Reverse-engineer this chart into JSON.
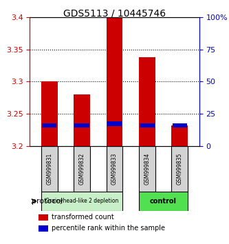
{
  "title": "GDS5113 / 10445746",
  "samples": [
    "GSM999831",
    "GSM999832",
    "GSM999833",
    "GSM999834",
    "GSM999835"
  ],
  "red_values": [
    3.3,
    3.28,
    3.4,
    3.338,
    3.232
  ],
  "blue_values": [
    3.232,
    3.232,
    3.235,
    3.232,
    3.232
  ],
  "ylim": [
    3.2,
    3.4
  ],
  "yticks": [
    3.2,
    3.25,
    3.3,
    3.35,
    3.4
  ],
  "y2lim": [
    0,
    100
  ],
  "y2ticks": [
    0,
    25,
    50,
    75,
    100
  ],
  "bar_width": 0.5,
  "red_color": "#cc0000",
  "blue_color": "#0000cc",
  "grid_color": "#000000",
  "group1_color": "#c8f0c8",
  "group2_color": "#50e050",
  "group1_label": "Grainyhead-like 2 depletion",
  "group2_label": "control",
  "group1_indices": [
    0,
    1,
    2
  ],
  "group2_indices": [
    3,
    4
  ],
  "protocol_label": "protocol",
  "legend_red": "transformed count",
  "legend_blue": "percentile rank within the sample",
  "xlabel_color": "#cc0000",
  "ylabel_color": "#0000cc",
  "bar_bottom": 3.2,
  "blue_bar_height": 0.007
}
